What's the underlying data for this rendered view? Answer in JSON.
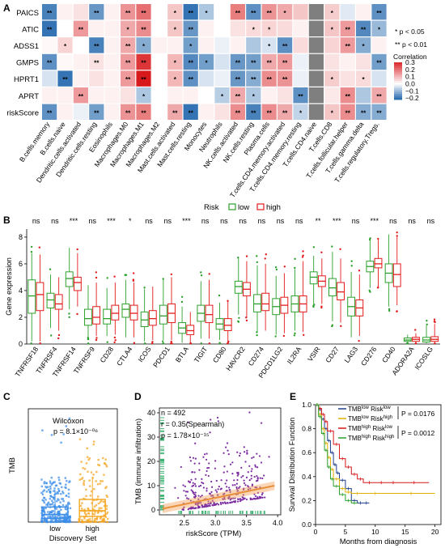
{
  "chart_data": [
    {
      "panel": "A",
      "type": "heatmap",
      "rows": [
        "PAICS",
        "ATIC",
        "ADSS1",
        "GMPS",
        "HPRT1",
        "APRT",
        "riskScore"
      ],
      "columns": [
        "B.cells.memory",
        "B.cells.naive",
        "Dendritic.cells.activated",
        "Dendritic.cells.resting",
        "Eosinophils",
        "Macrophages.M0",
        "Macrophages.M1",
        "Macrophages.M2",
        "Mast.cells.activated",
        "Mast.cells.resting",
        "Monocytes",
        "Neutrophils",
        "NK.cells.activated",
        "NK.cells.resting",
        "Plasma.cells",
        "T.cells.CD4.memory.activated",
        "T.cells.CD4.memory.resting",
        "T.cells.CD4.naive",
        "T.cells.CD8",
        "T.cells.follicular.helper",
        "T.cells.gamma.delta",
        "T.cells.regulatory.Tregs."
      ],
      "values": [
        [
          -0.18,
          0.02,
          0.04,
          -0.15,
          0.02,
          0.15,
          0.2,
          0.0,
          0.08,
          -0.2,
          -0.08,
          0.0,
          0.18,
          -0.16,
          0.15,
          0.12,
          0.08,
          null,
          0.07,
          -0.03,
          0.02,
          -0.16
        ],
        [
          -0.2,
          0.0,
          0.14,
          0.02,
          0.02,
          0.12,
          0.16,
          0.0,
          0.08,
          -0.15,
          0.02,
          0.0,
          0.04,
          0.05,
          0.06,
          0.05,
          0.02,
          null,
          0.08,
          0.14,
          -0.17,
          -0.1
        ],
        [
          0.01,
          0.06,
          0.0,
          -0.18,
          0.02,
          0.12,
          -0.12,
          0.02,
          0.02,
          -0.14,
          0.02,
          -0.02,
          0.02,
          -0.08,
          -0.04,
          -0.16,
          0.05,
          null,
          0.06,
          0.14,
          -0.12,
          0.02
        ],
        [
          -0.16,
          0.01,
          0.02,
          0.04,
          0.02,
          0.14,
          0.28,
          0.0,
          0.1,
          -0.17,
          -0.14,
          -0.04,
          -0.15,
          -0.14,
          0.12,
          0.14,
          -0.02,
          null,
          0.04,
          0.02,
          0.04,
          -0.14
        ],
        [
          -0.04,
          -0.2,
          0.02,
          0.04,
          0.02,
          0.14,
          0.32,
          0.0,
          0.1,
          -0.16,
          -0.04,
          -0.02,
          -0.15,
          -0.12,
          0.16,
          0.15,
          -0.02,
          null,
          0.07,
          0.04,
          0.05,
          -0.04
        ],
        [
          0.02,
          0.02,
          0.14,
          0.02,
          0.02,
          0.04,
          -0.08,
          0.0,
          0.02,
          0.02,
          0.0,
          -0.07,
          0.12,
          -0.08,
          0.02,
          0.04,
          -0.16,
          null,
          0.03,
          0.16,
          -0.08,
          0.12
        ],
        [
          -0.16,
          0.02,
          -0.02,
          -0.14,
          0.02,
          0.15,
          0.18,
          0.0,
          0.12,
          -0.2,
          0.02,
          0.04,
          0.16,
          -0.18,
          0.16,
          0.12,
          -0.06,
          null,
          0.08,
          0.16,
          -0.12,
          -0.12
        ]
      ],
      "significance": [
        [
          "**",
          "",
          "",
          "**",
          "",
          "**",
          "**",
          "",
          "*",
          "**",
          "*",
          "",
          "**",
          "**",
          "**",
          "*",
          "",
          "",
          "*",
          "",
          "",
          "**"
        ],
        [
          "**",
          "",
          "**",
          "",
          "",
          "*",
          "**",
          "",
          "*",
          "**",
          "",
          "",
          "",
          "*",
          "*",
          "",
          "",
          "",
          "*",
          "**",
          "**",
          "*"
        ],
        [
          "",
          "*",
          "",
          "**",
          "",
          "**",
          "*",
          "",
          "",
          "*",
          "",
          "",
          "",
          "",
          "*",
          "**",
          "",
          "",
          "",
          "**",
          "*",
          ""
        ],
        [
          "**",
          "",
          "",
          "**",
          "",
          "**",
          "**",
          "",
          "*",
          "**",
          "*",
          "",
          "**",
          "**",
          "**",
          "**",
          "",
          "",
          "",
          "",
          "",
          "**"
        ],
        [
          "",
          "**",
          "",
          "",
          "",
          "**",
          "**",
          "",
          "*",
          "**",
          "",
          "",
          "**",
          "**",
          "**",
          "**",
          "",
          "",
          "*",
          "",
          "*",
          ""
        ],
        [
          "",
          "",
          "**",
          "",
          "",
          "",
          "*",
          "",
          "",
          "",
          "",
          "*",
          "**",
          "*",
          "",
          "",
          "**",
          "",
          "",
          "**",
          "",
          "**"
        ],
        [
          "**",
          "",
          "",
          "**",
          "",
          "**",
          "**",
          "",
          "**",
          "**",
          "",
          "",
          "**",
          "**",
          "**",
          "**",
          "*",
          "",
          "*",
          "**",
          "**",
          "**"
        ]
      ],
      "legend_title": "Correlation",
      "legend_ticks": [
        0.3,
        0.2,
        0.1,
        0.0,
        -0.1,
        -0.2
      ],
      "legend_tick_labels": [
        "0.3",
        "0.2",
        "0.1",
        "0.0",
        "−0.1",
        "−0.2"
      ],
      "sig_note_1": "* p < 0.05",
      "sig_note_2": "** p < 0.01",
      "colors": {
        "neg": "#2166ac",
        "mid": "#ffffff",
        "pos": "#d7191c",
        "missing": "#7f7f7f"
      }
    },
    {
      "panel": "B",
      "type": "box",
      "legend_title": "Risk",
      "series": [
        {
          "name": "low",
          "color": "#2ca02c"
        },
        {
          "name": "high",
          "color": "#e41a1c"
        }
      ],
      "categories": [
        "TNFRSF18",
        "TNFRSF4",
        "TNFRSF14",
        "TNFRSF9",
        "CD28",
        "CTLA4",
        "ICOS",
        "PDCD1",
        "BTLA",
        "TIGIT",
        "CD80",
        "HAVCR2",
        "CD274",
        "PDCD1LG2",
        "IL2RA",
        "VSIR",
        "CD27",
        "LAG3",
        "CD276",
        "CD40",
        "ADORA2A",
        "ICOSLG"
      ],
      "significance": [
        "ns",
        "ns",
        "***",
        "ns",
        "***",
        "*",
        "ns",
        "ns",
        "***",
        "ns",
        "ns",
        "ns",
        "ns",
        "ns",
        "ns",
        "**",
        "***",
        "ns",
        "***",
        "ns",
        "ns",
        "ns"
      ],
      "ylabel": "Gene expression",
      "ylim": [
        0,
        8.6
      ],
      "yticks": [
        0,
        2,
        4,
        6,
        8
      ],
      "boxes": [
        [
          [
            0.2,
            2.3,
            3.6,
            4.8,
            6.8
          ],
          [
            0.2,
            2.5,
            3.7,
            4.6,
            6.7
          ]
        ],
        [
          [
            1.2,
            2.7,
            3.3,
            3.8,
            5.2
          ],
          [
            1.0,
            2.6,
            3.0,
            3.7,
            5.0
          ]
        ],
        [
          [
            2.6,
            4.3,
            4.9,
            5.4,
            7.2
          ],
          [
            2.8,
            4.0,
            4.6,
            5.0,
            6.8
          ]
        ],
        [
          [
            0.5,
            1.4,
            1.9,
            2.6,
            4.4
          ],
          [
            0.6,
            1.5,
            2.0,
            2.8,
            4.6
          ]
        ],
        [
          [
            0.6,
            1.5,
            1.9,
            2.6,
            4.2
          ],
          [
            0.7,
            1.8,
            2.3,
            2.9,
            4.6
          ]
        ],
        [
          [
            0.5,
            2.0,
            2.6,
            3.0,
            4.8
          ],
          [
            0.5,
            1.8,
            2.3,
            2.9,
            4.6
          ]
        ],
        [
          [
            0.2,
            1.3,
            1.8,
            2.4,
            4.1
          ],
          [
            0.3,
            1.4,
            1.9,
            2.5,
            4.3
          ]
        ],
        [
          [
            0.3,
            1.5,
            2.1,
            2.9,
            4.8
          ],
          [
            0.3,
            1.6,
            2.3,
            3.0,
            5.0
          ]
        ],
        [
          [
            0.1,
            0.8,
            1.2,
            1.6,
            2.8
          ],
          [
            0.1,
            0.7,
            1.0,
            1.4,
            2.4
          ]
        ],
        [
          [
            0.4,
            1.7,
            2.3,
            2.9,
            4.7
          ],
          [
            0.4,
            1.6,
            2.2,
            2.9,
            4.8
          ]
        ],
        [
          [
            0.3,
            1.1,
            1.5,
            1.9,
            3.1
          ],
          [
            0.2,
            1.0,
            1.4,
            1.9,
            3.2
          ]
        ],
        [
          [
            2.2,
            3.8,
            4.3,
            4.7,
            6.4
          ],
          [
            2.0,
            3.6,
            4.1,
            4.6,
            6.2
          ]
        ],
        [
          [
            0.9,
            2.4,
            3.0,
            3.7,
            5.9
          ],
          [
            1.0,
            2.5,
            3.0,
            3.8,
            6.0
          ]
        ],
        [
          [
            0.7,
            2.2,
            2.8,
            3.4,
            5.1
          ],
          [
            0.8,
            2.3,
            2.9,
            3.5,
            5.3
          ]
        ],
        [
          [
            1.0,
            2.4,
            3.0,
            3.6,
            5.6
          ],
          [
            0.9,
            2.4,
            3.0,
            3.6,
            6.2
          ]
        ],
        [
          [
            3.0,
            4.5,
            5.0,
            5.4,
            6.6
          ],
          [
            3.0,
            4.3,
            4.7,
            5.1,
            6.4
          ]
        ],
        [
          [
            1.7,
            3.6,
            4.2,
            4.9,
            6.9
          ],
          [
            1.6,
            3.3,
            3.9,
            4.6,
            6.4
          ]
        ],
        [
          [
            0.5,
            2.1,
            2.8,
            3.5,
            5.4
          ],
          [
            0.6,
            2.1,
            2.7,
            3.3,
            5.2
          ]
        ],
        [
          [
            4.2,
            5.4,
            5.8,
            6.2,
            7.8
          ],
          [
            4.3,
            5.7,
            6.0,
            6.4,
            7.8
          ]
        ],
        [
          [
            2.8,
            4.6,
            5.3,
            6.0,
            8.2
          ],
          [
            2.9,
            4.3,
            5.2,
            6.0,
            8.0
          ]
        ],
        [
          [
            0.05,
            0.2,
            0.3,
            0.45,
            0.7
          ],
          [
            0.05,
            0.2,
            0.35,
            0.5,
            0.8
          ]
        ],
        [
          [
            0.05,
            0.15,
            0.3,
            0.5,
            1.4
          ],
          [
            0.05,
            0.2,
            0.35,
            0.55,
            1.5
          ]
        ]
      ]
    },
    {
      "panel": "C",
      "type": "box",
      "annotation_line1": "Wilcoxon",
      "annotation_line2": "p = 8.1×10⁻⁰⁶",
      "categories": [
        "low",
        "high"
      ],
      "xlabel": "Discovery Set",
      "ylabel": "TMB",
      "colors": [
        "#3d8ee8",
        "#f5a623"
      ],
      "boxes": [
        [
          0,
          2,
          4,
          8,
          17
        ],
        [
          0,
          3,
          6,
          12,
          24
        ]
      ],
      "ylim": [
        0,
        60
      ]
    },
    {
      "panel": "D",
      "type": "scatter",
      "annotation_n": "n = 492",
      "annotation_r": "r = 0.35(Spearman)",
      "annotation_p": "p = 1.78×10⁻¹⁵",
      "xlabel": "riskScore (TPM)",
      "ylabel": "TMB (immune infiltration)",
      "xlim": [
        2.1,
        4.05
      ],
      "ylim": [
        -2,
        42
      ],
      "xticks": [
        2.5,
        3.0,
        3.5,
        4.0
      ],
      "yticks": [
        0,
        10,
        20,
        30,
        40
      ],
      "point_color": "#7b2ca0",
      "fit": {
        "x0": 2.15,
        "y0": 0.5,
        "x1": 3.95,
        "y1": 10,
        "color": "#f4a460"
      }
    },
    {
      "panel": "E",
      "type": "line",
      "ylabel": "Survival Distribution Function",
      "xlabel": "Months from diagnosis",
      "xlim": [
        0,
        21
      ],
      "ylim": [
        0,
        1.0
      ],
      "xticks": [
        0,
        5,
        10,
        15,
        20
      ],
      "yticks": [
        0.0,
        0.2,
        0.4,
        0.6,
        0.8,
        1.0
      ],
      "ytick_labels": [
        "0.0",
        "0.2",
        "0.4",
        "0.6",
        "0.8",
        "1.0"
      ],
      "p_value_1": "P = 0.0176",
      "p_value_2": "P = 0.0012",
      "series": [
        {
          "name_pre": "TMB",
          "name_sup1": "low",
          "name_mid": " Risk",
          "name_sup2": "low",
          "color": "#1f3f8f",
          "x": [
            0,
            0.5,
            1,
            1.5,
            2,
            2.5,
            3,
            3.5,
            4,
            5,
            6,
            7,
            8,
            9
          ],
          "y": [
            1.0,
            0.96,
            0.88,
            0.8,
            0.7,
            0.6,
            0.5,
            0.43,
            0.37,
            0.3,
            0.2,
            0.18,
            0.18,
            0.18
          ]
        },
        {
          "name_pre": "TMB",
          "name_sup1": "low",
          "name_mid": " Risk",
          "name_sup2": "high",
          "color": "#e0b000",
          "x": [
            0,
            0.5,
            1,
            1.5,
            2,
            2.5,
            3,
            4,
            5,
            6,
            8,
            12,
            20
          ],
          "y": [
            1.0,
            0.92,
            0.8,
            0.68,
            0.56,
            0.46,
            0.38,
            0.3,
            0.27,
            0.26,
            0.26,
            0.26,
            0.26
          ]
        },
        {
          "name_pre": "TMB",
          "name_sup1": "high",
          "name_mid": " Risk",
          "name_sup2": "low",
          "color": "#d7191c",
          "x": [
            0,
            0.5,
            1,
            1.5,
            2,
            3,
            4,
            5,
            6,
            7,
            8,
            10,
            12,
            14,
            19
          ],
          "y": [
            1.0,
            0.97,
            0.92,
            0.86,
            0.78,
            0.67,
            0.55,
            0.48,
            0.42,
            0.38,
            0.35,
            0.35,
            0.35,
            0.35,
            0.35
          ]
        },
        {
          "name_pre": "TMB",
          "name_sup1": "high",
          "name_mid": " Risk",
          "name_sup2": "high",
          "color": "#2ca02c",
          "x": [
            0,
            0.5,
            1,
            1.5,
            2,
            2.5,
            3,
            4,
            5,
            6,
            7
          ],
          "y": [
            1.0,
            0.9,
            0.76,
            0.62,
            0.48,
            0.38,
            0.32,
            0.25,
            0.2,
            0.18,
            0.18
          ]
        }
      ]
    }
  ]
}
